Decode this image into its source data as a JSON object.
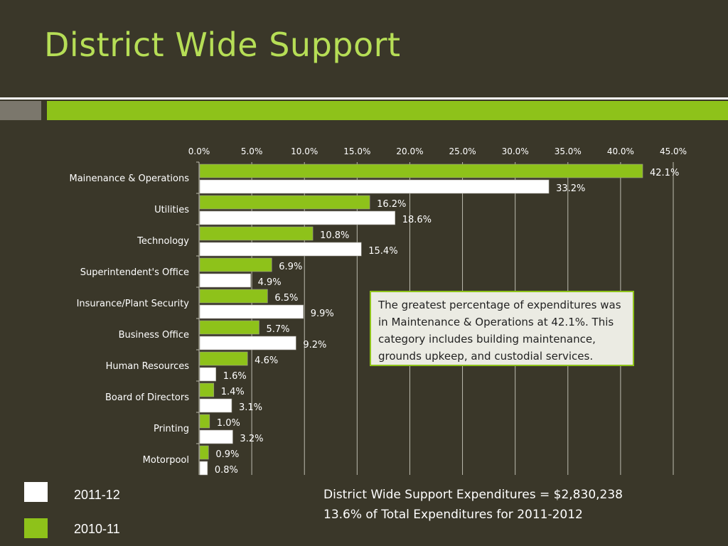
{
  "slide": {
    "title": "District Wide Support"
  },
  "chart_data": {
    "type": "bar",
    "orientation": "horizontal",
    "categories": [
      "Mainenance & Operations",
      "Utilities",
      "Technology",
      "Superintendent's Office",
      "Insurance/Plant Security",
      "Business Office",
      "Human Resources",
      "Board of Directors",
      "Printing",
      "Motorpool"
    ],
    "series": [
      {
        "name": "2010-11",
        "color": "#8ec21a",
        "values": [
          42.1,
          16.2,
          10.8,
          6.9,
          6.5,
          5.7,
          4.6,
          1.4,
          1.0,
          0.9
        ]
      },
      {
        "name": "2011-12",
        "color": "#ffffff",
        "values": [
          33.2,
          18.6,
          15.4,
          4.9,
          9.9,
          9.2,
          1.6,
          3.1,
          3.2,
          0.8
        ]
      }
    ],
    "xlim": [
      0,
      45
    ],
    "xticks": [
      0,
      5,
      10,
      15,
      20,
      25,
      30,
      35,
      40,
      45
    ],
    "xtick_labels": [
      "0.0%",
      "5.0%",
      "10.0%",
      "15.0%",
      "20.0%",
      "25.0%",
      "30.0%",
      "35.0%",
      "40.0%",
      "45.0%"
    ],
    "value_suffix": "%",
    "axis_position": "top",
    "grid": true,
    "legend_position": "bottom-left"
  },
  "callout": {
    "text": "The greatest percentage of expenditures was in Maintenance & Operations at 42.1%. This category includes building maintenance, grounds upkeep, and custodial services."
  },
  "legend": {
    "items": [
      {
        "label": "2011-12",
        "color": "#ffffff"
      },
      {
        "label": "2010-11",
        "color": "#8ec21a"
      }
    ]
  },
  "footnote": {
    "line1": "District Wide Support Expenditures =  $2,830,238",
    "line2": "13.6% of Total Expenditures for 2011-2012"
  }
}
